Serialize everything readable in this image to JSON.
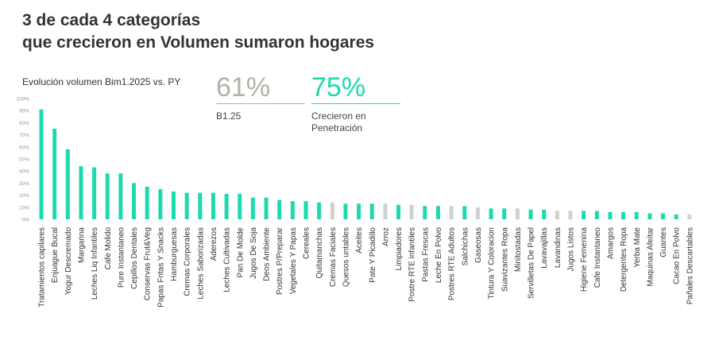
{
  "title_line1": "3 de cada 4 categorías",
  "title_line2": "que crecieron en Volumen sumaron hogares",
  "kpis": [
    {
      "value": "61%",
      "label": "B1.25",
      "color": "#b3b1a6"
    },
    {
      "value": "75%",
      "label_line1": "Crecieron en",
      "label_line2": "Penetración",
      "color": "#1ed9b0"
    }
  ],
  "chart_data": {
    "type": "bar",
    "title": "Evolución volumen Bim1.2025 vs. PY",
    "ylim": [
      0,
      100
    ],
    "yticks": [
      "0%",
      "10%",
      "20%",
      "30%",
      "40%",
      "50%",
      "60%",
      "70%",
      "80%",
      "90%",
      "100%"
    ],
    "grid": false,
    "colors": {
      "green": "#1ed9b0",
      "gray": "#d0d0d0"
    },
    "categories": [
      "Tratamientos capilares",
      "Enjuague Bucal",
      "Yogur Descremado",
      "Margarina",
      "Leches Liq Infantiles",
      "Cafe Molido",
      "Pure Instantaneo",
      "Cepillos Dentales",
      "Conservas Frut&Veg",
      "Papas Fritas Y Snacks",
      "Hamburguesas",
      "Cremas Corporales",
      "Leches Saborizadas",
      "Aderezos",
      "Leches Cultivadas",
      "Pan De Molde",
      "Jugos De Soja",
      "Deos Ambiente",
      "Postres P/Preparar",
      "Vegetales Y Papas",
      "Cereales",
      "Quitamanchas",
      "Cremas Faciales",
      "Quesos untables",
      "Aceites",
      "Pate Y Picadillo",
      "Arroz",
      "Limpiadores",
      "Postre RTE infantiles",
      "Pastas Frescas",
      "Leche En Polvo",
      "Postres RTE Adultos",
      "Salchichas",
      "Gaseosas",
      "Tintura Y Coloracion",
      "Suavizantes Ropa",
      "Minitostadas",
      "Servilletas De Papel",
      "Lavavajillas",
      "Lavandinas",
      "Jugos Listos",
      "Higiene Femenina",
      "Cafe Instantaneo",
      "Amargos",
      "Detergentes Ropa",
      "Yerba Mate",
      "Maquinas Afeitar",
      "Guantes",
      "Cacao En Polvo",
      "Pañales Descartables"
    ],
    "values": [
      91,
      75,
      58,
      44,
      43,
      38,
      38,
      30,
      27,
      25,
      23,
      22,
      22,
      22,
      21,
      21,
      18,
      18,
      16,
      15,
      15,
      14,
      14,
      13,
      13,
      13,
      13,
      12,
      12,
      11,
      11,
      11,
      11,
      10,
      9,
      9,
      9,
      8,
      8,
      7,
      7,
      7,
      7,
      6,
      6,
      6,
      5,
      5,
      4,
      4
    ],
    "grew_penetration": [
      true,
      true,
      true,
      true,
      true,
      true,
      true,
      true,
      true,
      true,
      true,
      true,
      true,
      true,
      true,
      true,
      true,
      true,
      true,
      true,
      true,
      true,
      false,
      true,
      true,
      true,
      false,
      true,
      false,
      true,
      true,
      false,
      true,
      false,
      true,
      true,
      false,
      true,
      true,
      false,
      false,
      true,
      true,
      true,
      true,
      true,
      true,
      true,
      true,
      false
    ]
  }
}
